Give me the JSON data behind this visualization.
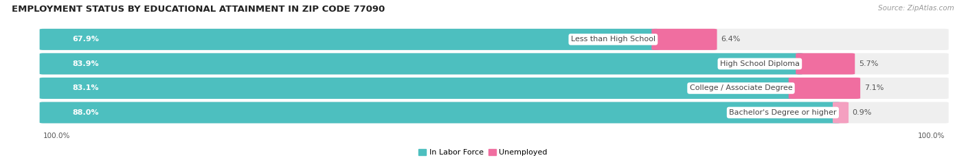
{
  "title": "EMPLOYMENT STATUS BY EDUCATIONAL ATTAINMENT IN ZIP CODE 77090",
  "source": "Source: ZipAtlas.com",
  "categories": [
    "Less than High School",
    "High School Diploma",
    "College / Associate Degree",
    "Bachelor's Degree or higher"
  ],
  "in_labor_force": [
    67.9,
    83.9,
    83.1,
    88.0
  ],
  "unemployed": [
    6.4,
    5.7,
    7.1,
    0.9
  ],
  "color_labor": "#4DBFBF",
  "color_unemployed_0": "#F06EA0",
  "color_unemployed_1": "#F06EA0",
  "color_unemployed_2": "#F06EA0",
  "color_unemployed_3": "#F4A0C0",
  "color_bg_bar": "#EFEFEF",
  "axis_label_left": "100.0%",
  "axis_label_right": "100.0%",
  "legend_labor": "In Labor Force",
  "legend_unemployed": "Unemployed",
  "title_fontsize": 9.5,
  "source_fontsize": 7.5,
  "bar_label_fontsize": 8,
  "category_fontsize": 8,
  "axis_fontsize": 7.5
}
